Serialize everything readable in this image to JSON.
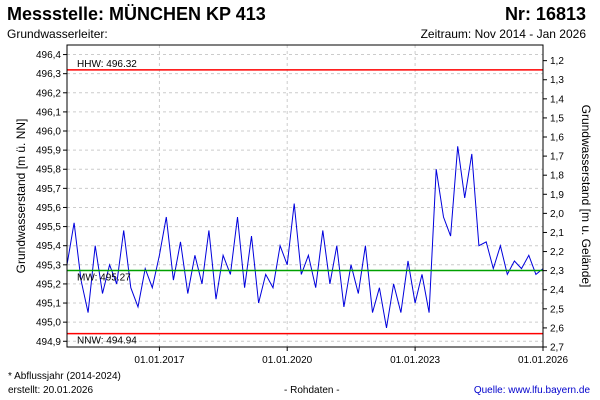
{
  "header": {
    "title": "Messstelle: MÜNCHEN KP 413",
    "number": "Nr: 16813",
    "aquifer_label": "Grundwasserleiter:",
    "period": "Zeitraum: Nov 2014 - Jan 2026"
  },
  "footer": {
    "note": "* Abflussjahr (2014-2024)",
    "created": "erstellt:  20.01.2026",
    "raw": "- Rohdaten -",
    "source": "Quelle: www.lfu.bayern.de"
  },
  "colors": {
    "series": "#0000dd",
    "hhw": "#ff0000",
    "nnw": "#ff0000",
    "mw": "#00a000",
    "grid": "#cccccc"
  },
  "chart_data": {
    "type": "line",
    "title": "",
    "ylabel": "Grundwasserstand [m ü. NN]",
    "ylabel_right": "Grundwasserstand [m u. Gelände]",
    "ylim": [
      494.87,
      496.45
    ],
    "ylim_right": [
      2.7,
      1.118
    ],
    "yticks": [
      "494,9",
      "495,0",
      "495,1",
      "495,2",
      "495,3",
      "495,4",
      "495,5",
      "495,6",
      "495,7",
      "495,8",
      "495,9",
      "496,0",
      "496,1",
      "496,2",
      "496,3",
      "496,4"
    ],
    "yticks_right": [
      "1,2",
      "1,3",
      "1,4",
      "1,5",
      "1,6",
      "1,7",
      "1,8",
      "1,9",
      "2,0",
      "2,1",
      "2,2",
      "2,3",
      "2,4",
      "2,5",
      "2,6",
      "2,7"
    ],
    "xlim": [
      "2014-11-01",
      "2026-01-01"
    ],
    "xticks": [
      "01.01.2017",
      "01.01.2020",
      "01.01.2023",
      "01.01.2026"
    ],
    "grid": true,
    "reference_lines": [
      {
        "label": "HHW: 496.32",
        "value": 496.32
      },
      {
        "label": "MW: 495.27",
        "value": 495.27
      },
      {
        "label": "NNW: 494.94",
        "value": 494.94
      }
    ],
    "series": [
      {
        "x": [
          "2014-11",
          "2015-01",
          "2015-03",
          "2015-05",
          "2015-07",
          "2015-09",
          "2015-11",
          "2016-01",
          "2016-03",
          "2016-05",
          "2016-07",
          "2016-09",
          "2016-11",
          "2017-01",
          "2017-03",
          "2017-05",
          "2017-07",
          "2017-09",
          "2017-11",
          "2018-01",
          "2018-03",
          "2018-05",
          "2018-07",
          "2018-09",
          "2018-11",
          "2019-01",
          "2019-03",
          "2019-05",
          "2019-07",
          "2019-09",
          "2019-11",
          "2020-01",
          "2020-03",
          "2020-05",
          "2020-07",
          "2020-09",
          "2020-11",
          "2021-01",
          "2021-03",
          "2021-05",
          "2021-07",
          "2021-09",
          "2021-11",
          "2022-01",
          "2022-03",
          "2022-05",
          "2022-07",
          "2022-09",
          "2022-11",
          "2023-01",
          "2023-03",
          "2023-05",
          "2023-07",
          "2023-09",
          "2023-11",
          "2024-01",
          "2024-03",
          "2024-05",
          "2024-07",
          "2024-09",
          "2024-11",
          "2025-01",
          "2025-03",
          "2025-05",
          "2025-07",
          "2025-09",
          "2025-11",
          "2026-01"
        ],
        "values": [
          495.3,
          495.52,
          495.22,
          495.05,
          495.4,
          495.15,
          495.3,
          495.2,
          495.48,
          495.18,
          495.08,
          495.28,
          495.18,
          495.35,
          495.55,
          495.22,
          495.42,
          495.15,
          495.35,
          495.2,
          495.48,
          495.12,
          495.35,
          495.25,
          495.55,
          495.18,
          495.45,
          495.1,
          495.25,
          495.18,
          495.4,
          495.3,
          495.62,
          495.25,
          495.35,
          495.18,
          495.48,
          495.2,
          495.4,
          495.08,
          495.3,
          495.15,
          495.4,
          495.05,
          495.18,
          494.97,
          495.2,
          495.05,
          495.32,
          495.1,
          495.25,
          495.05,
          495.8,
          495.55,
          495.45,
          495.92,
          495.65,
          495.88,
          495.4,
          495.42,
          495.28,
          495.4,
          495.25,
          495.32,
          495.28,
          495.35,
          495.25,
          495.28
        ]
      }
    ]
  }
}
